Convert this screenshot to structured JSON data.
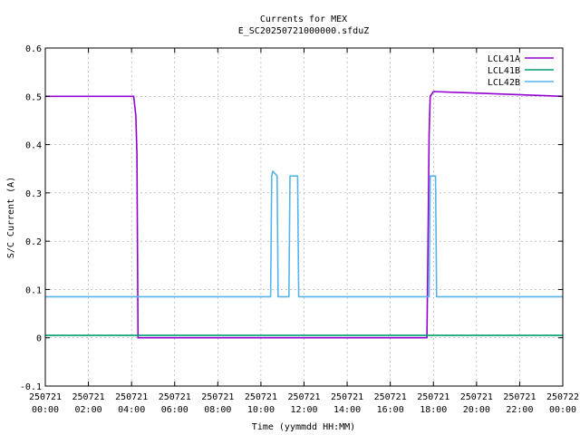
{
  "chart_data": {
    "type": "line",
    "title": "Currents for MEX",
    "subtitle": "E_SC20250721000000.sfduZ",
    "xlabel": "Time (yymmdd HH:MM)",
    "ylabel": "S/C Current (A)",
    "xlim": [
      0,
      24
    ],
    "ylim": [
      -0.1,
      0.6
    ],
    "grid": true,
    "legend_position": "top-right",
    "x_ticks": [
      {
        "value": 0,
        "line1": "250721",
        "line2": "00:00"
      },
      {
        "value": 2,
        "line1": "250721",
        "line2": "02:00"
      },
      {
        "value": 4,
        "line1": "250721",
        "line2": "04:00"
      },
      {
        "value": 6,
        "line1": "250721",
        "line2": "06:00"
      },
      {
        "value": 8,
        "line1": "250721",
        "line2": "08:00"
      },
      {
        "value": 10,
        "line1": "250721",
        "line2": "10:00"
      },
      {
        "value": 12,
        "line1": "250721",
        "line2": "12:00"
      },
      {
        "value": 14,
        "line1": "250721",
        "line2": "14:00"
      },
      {
        "value": 16,
        "line1": "250721",
        "line2": "16:00"
      },
      {
        "value": 18,
        "line1": "250721",
        "line2": "18:00"
      },
      {
        "value": 20,
        "line1": "250721",
        "line2": "20:00"
      },
      {
        "value": 22,
        "line1": "250721",
        "line2": "22:00"
      },
      {
        "value": 24,
        "line1": "250722",
        "line2": "00:00"
      }
    ],
    "y_ticks": [
      {
        "value": -0.1,
        "label": "-0.1"
      },
      {
        "value": 0,
        "label": "0"
      },
      {
        "value": 0.1,
        "label": "0.1"
      },
      {
        "value": 0.2,
        "label": "0.2"
      },
      {
        "value": 0.3,
        "label": "0.3"
      },
      {
        "value": 0.4,
        "label": "0.4"
      },
      {
        "value": 0.5,
        "label": "0.5"
      },
      {
        "value": 0.6,
        "label": "0.6"
      }
    ],
    "series": [
      {
        "name": "LCL41A",
        "color": "#9400d3",
        "points": [
          [
            0,
            0.5
          ],
          [
            4.1,
            0.5
          ],
          [
            4.2,
            0.46
          ],
          [
            4.25,
            0.38
          ],
          [
            4.3,
            0.0
          ],
          [
            17.7,
            0.0
          ],
          [
            17.75,
            0.2
          ],
          [
            17.8,
            0.42
          ],
          [
            17.85,
            0.5
          ],
          [
            18.0,
            0.51
          ],
          [
            24,
            0.5
          ]
        ]
      },
      {
        "name": "LCL41B",
        "color": "#009e73",
        "points": [
          [
            0,
            0.005
          ],
          [
            24,
            0.005
          ]
        ]
      },
      {
        "name": "LCL42B",
        "color": "#56b4e9",
        "points": [
          [
            0,
            0.085
          ],
          [
            10.45,
            0.085
          ],
          [
            10.5,
            0.335
          ],
          [
            10.55,
            0.345
          ],
          [
            10.75,
            0.335
          ],
          [
            10.8,
            0.085
          ],
          [
            11.3,
            0.085
          ],
          [
            11.35,
            0.335
          ],
          [
            11.7,
            0.335
          ],
          [
            11.75,
            0.085
          ],
          [
            17.8,
            0.085
          ],
          [
            17.85,
            0.335
          ],
          [
            18.1,
            0.335
          ],
          [
            18.15,
            0.085
          ],
          [
            24,
            0.085
          ]
        ]
      }
    ]
  }
}
